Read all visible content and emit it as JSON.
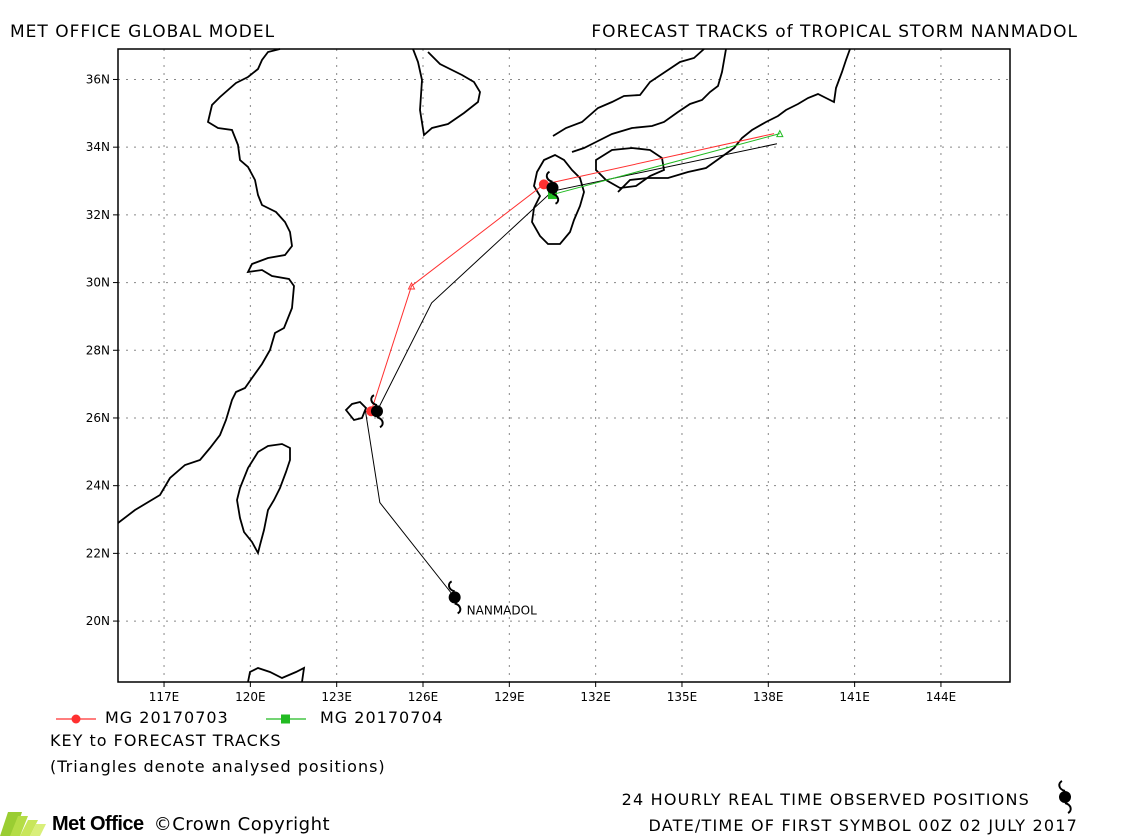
{
  "header": {
    "left_title": "MET OFFICE GLOBAL MODEL",
    "right_title": "FORECAST TRACKS of TROPICAL STORM NANMADOL"
  },
  "map": {
    "lon_range": [
      115.4,
      146.4
    ],
    "lat_range": [
      18.2,
      36.9
    ],
    "lon_ticks": [
      "117E",
      "120E",
      "123E",
      "126E",
      "129E",
      "132E",
      "135E",
      "138E",
      "141E",
      "144E"
    ],
    "lat_ticks": [
      "36N",
      "34N",
      "32N",
      "30N",
      "28N",
      "26N",
      "24N",
      "22N",
      "20N"
    ],
    "grid": true,
    "storm_label": "NANMADOL"
  },
  "chart_data": {
    "type": "map-tracks",
    "observed_track": {
      "color": "#000000",
      "points": [
        [
          127.1,
          20.7
        ],
        [
          124.5,
          23.5
        ],
        [
          124.0,
          26.2
        ],
        [
          124.4,
          26.2
        ],
        [
          126.3,
          29.4
        ],
        [
          130.5,
          32.7
        ],
        [
          138.3,
          34.1
        ]
      ]
    },
    "forecast_tracks": [
      {
        "name": "MG 20170703",
        "color": "#ff3030",
        "marker": "circle",
        "points": [
          [
            124.2,
            26.2
          ],
          [
            125.6,
            29.9
          ],
          [
            130.2,
            32.9
          ],
          [
            138.2,
            34.4
          ]
        ]
      },
      {
        "name": "MG 20170704",
        "color": "#22bb22",
        "marker": "square",
        "points": [
          [
            130.5,
            32.6
          ],
          [
            138.4,
            34.4
          ]
        ]
      }
    ],
    "observed_symbols": [
      [
        127.1,
        20.7
      ],
      [
        124.4,
        26.2
      ],
      [
        130.5,
        32.8
      ]
    ]
  },
  "legend": {
    "entries": [
      {
        "label": "MG 20170703",
        "color": "#ff3030"
      },
      {
        "label": "MG 20170704",
        "color": "#22bb22"
      }
    ],
    "key_title": "KEY to FORECAST TRACKS",
    "key_note": "(Triangles denote analysed positions)"
  },
  "footer": {
    "observed_note": "24 HOURLY REAL TIME OBSERVED POSITIONS",
    "first_symbol": "DATE/TIME OF FIRST SYMBOL 00Z 02 JULY 2017",
    "logo_text": "Met Office",
    "copyright": "©Crown Copyright"
  }
}
